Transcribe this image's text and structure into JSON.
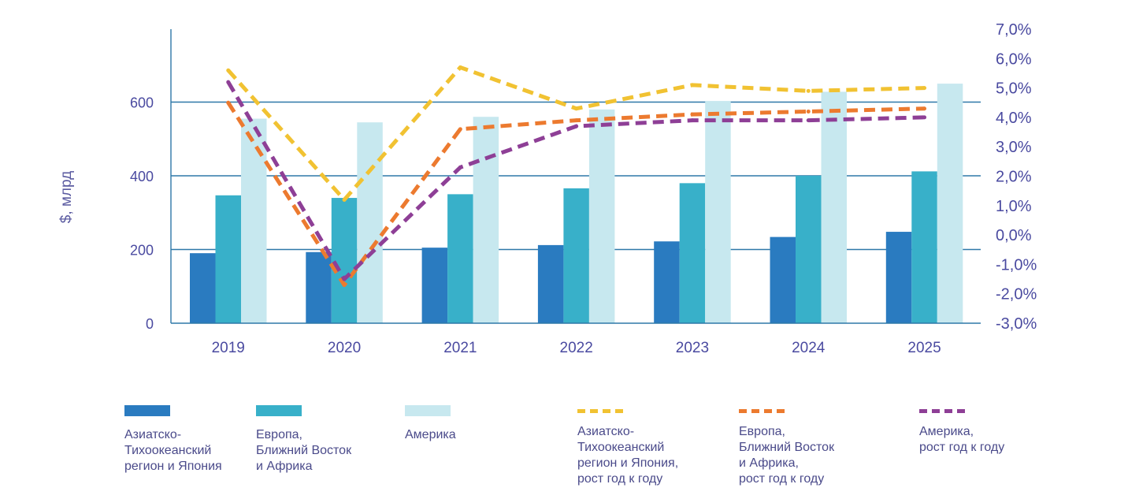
{
  "chart_data": {
    "type": "bar",
    "categories": [
      "2019",
      "2020",
      "2021",
      "2022",
      "2023",
      "2024",
      "2025"
    ],
    "ylabel": "$, млрд",
    "ylim": [
      0,
      800
    ],
    "yticks": [
      0,
      200,
      400,
      600
    ],
    "y2lim": [
      -3.0,
      7.0
    ],
    "y2ticks": [
      "7,0%",
      "6,0%",
      "5,0%",
      "4,0%",
      "3,0%",
      "2,0%",
      "1,0%",
      "0,0%",
      "-1,0%",
      "-2,0%",
      "-3,0%"
    ],
    "series": [
      {
        "name": "Азиатско-\nТихоокеанский\nрегион и Япония",
        "kind": "bar",
        "color": "#2a7bc0",
        "values": [
          190,
          193,
          205,
          212,
          222,
          234,
          248
        ]
      },
      {
        "name": "Европа,\nБлижний Восток\nи Африка",
        "kind": "bar",
        "color": "#38b0c9",
        "values": [
          347,
          340,
          350,
          366,
          380,
          400,
          412
        ]
      },
      {
        "name": "Америка",
        "kind": "bar",
        "color": "#c7e8ef",
        "values": [
          555,
          545,
          560,
          580,
          603,
          628,
          650
        ]
      }
    ],
    "line_series": [
      {
        "name": "Азиатско-\nТихоокеанский\nрегион и Япония,\nрост год к году",
        "color": "#f1c232",
        "values": [
          5.6,
          1.2,
          5.7,
          4.3,
          5.1,
          4.9,
          5.0
        ]
      },
      {
        "name": "Европа,\nБлижний Восток\nи Африка,\nрост год к году",
        "color": "#ec7a2f",
        "values": [
          4.5,
          -1.7,
          3.6,
          3.9,
          4.1,
          4.2,
          4.3
        ]
      },
      {
        "name": "Америка,\nрост год к году",
        "color": "#8e3f96",
        "values": [
          5.2,
          -1.5,
          2.3,
          3.7,
          3.9,
          3.9,
          4.0
        ]
      }
    ]
  }
}
